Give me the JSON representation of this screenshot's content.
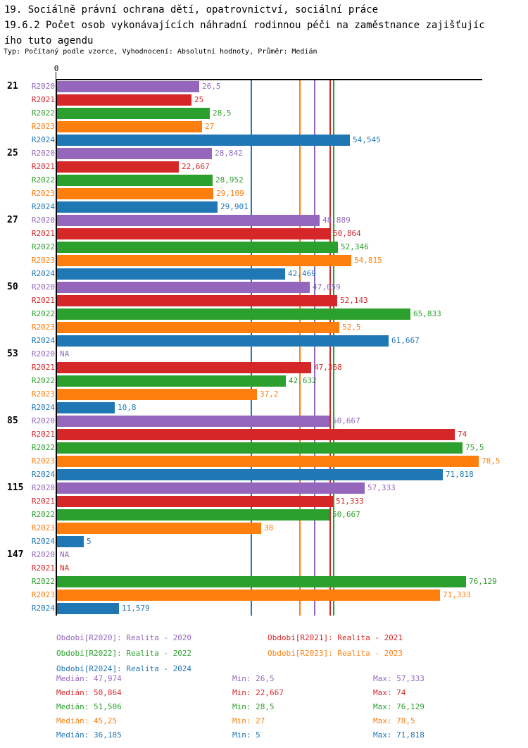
{
  "header": {
    "title_line1": "19. Sociálně právní ochrana dětí, opatrovnictví, sociální práce",
    "title_line2": "19.6.2 Počet osob vykonávajících náhradní rodinnou péči na zaměstnance zajišťujíc",
    "title_line3": "ího tuto agendu",
    "meta_line": "Typ: Počítaný podle vzorce, Vyhodnocení: Absolutní hodnoty, Průměr: Medián"
  },
  "colors": {
    "R2020": "#9467bd",
    "R2021": "#d62728",
    "R2022": "#2ca02c",
    "R2023": "#ff7f0e",
    "R2024": "#1f77b4",
    "axis": "#000000"
  },
  "chart_data": {
    "type": "bar",
    "orientation": "horizontal",
    "x_axis": {
      "zero_label": "0",
      "xlim": [
        0,
        79.3
      ],
      "grid": false
    },
    "series_order": [
      "R2020",
      "R2021",
      "R2022",
      "R2023",
      "R2024"
    ],
    "groups": [
      {
        "category": "21",
        "bars": [
          {
            "series": "R2020",
            "value": 26.5,
            "label": "26,5"
          },
          {
            "series": "R2021",
            "value": 25,
            "label": "25"
          },
          {
            "series": "R2022",
            "value": 28.5,
            "label": "28,5"
          },
          {
            "series": "R2023",
            "value": 27,
            "label": "27"
          },
          {
            "series": "R2024",
            "value": 54.545,
            "label": "54,545"
          }
        ]
      },
      {
        "category": "25",
        "bars": [
          {
            "series": "R2020",
            "value": 28.842,
            "label": "28,842"
          },
          {
            "series": "R2021",
            "value": 22.667,
            "label": "22,667"
          },
          {
            "series": "R2022",
            "value": 28.952,
            "label": "28,952"
          },
          {
            "series": "R2023",
            "value": 29.109,
            "label": "29,109"
          },
          {
            "series": "R2024",
            "value": 29.901,
            "label": "29,901"
          }
        ]
      },
      {
        "category": "27",
        "bars": [
          {
            "series": "R2020",
            "value": 48.889,
            "label": "48,889"
          },
          {
            "series": "R2021",
            "value": 50.864,
            "label": "50,864"
          },
          {
            "series": "R2022",
            "value": 52.346,
            "label": "52,346"
          },
          {
            "series": "R2023",
            "value": 54.815,
            "label": "54,815"
          },
          {
            "series": "R2024",
            "value": 42.469,
            "label": "42,469"
          }
        ]
      },
      {
        "category": "50",
        "bars": [
          {
            "series": "R2020",
            "value": 47.059,
            "label": "47,059"
          },
          {
            "series": "R2021",
            "value": 52.143,
            "label": "52,143"
          },
          {
            "series": "R2022",
            "value": 65.833,
            "label": "65,833"
          },
          {
            "series": "R2023",
            "value": 52.5,
            "label": "52,5"
          },
          {
            "series": "R2024",
            "value": 61.667,
            "label": "61,667"
          }
        ]
      },
      {
        "category": "53",
        "bars": [
          {
            "series": "R2020",
            "value": null,
            "label": "NA"
          },
          {
            "series": "R2021",
            "value": 47.368,
            "label": "47,368"
          },
          {
            "series": "R2022",
            "value": 42.632,
            "label": "42,632"
          },
          {
            "series": "R2023",
            "value": 37.2,
            "label": "37,2"
          },
          {
            "series": "R2024",
            "value": 10.8,
            "label": "10,8"
          }
        ]
      },
      {
        "category": "85",
        "bars": [
          {
            "series": "R2020",
            "value": 50.667,
            "label": "50,667"
          },
          {
            "series": "R2021",
            "value": 74,
            "label": "74"
          },
          {
            "series": "R2022",
            "value": 75.5,
            "label": "75,5"
          },
          {
            "series": "R2023",
            "value": 78.5,
            "label": "78,5"
          },
          {
            "series": "R2024",
            "value": 71.818,
            "label": "71,818"
          }
        ]
      },
      {
        "category": "115",
        "bars": [
          {
            "series": "R2020",
            "value": 57.333,
            "label": "57,333"
          },
          {
            "series": "R2021",
            "value": 51.333,
            "label": "51,333"
          },
          {
            "series": "R2022",
            "value": 50.667,
            "label": "50,667"
          },
          {
            "series": "R2023",
            "value": 38,
            "label": "38"
          },
          {
            "series": "R2024",
            "value": 5,
            "label": "5"
          }
        ]
      },
      {
        "category": "147",
        "bars": [
          {
            "series": "R2020",
            "value": null,
            "label": "NA"
          },
          {
            "series": "R2021",
            "value": null,
            "label": "NA"
          },
          {
            "series": "R2022",
            "value": 76.129,
            "label": "76,129"
          },
          {
            "series": "R2023",
            "value": 71.333,
            "label": "71,333"
          },
          {
            "series": "R2024",
            "value": 11.579,
            "label": "11,579"
          }
        ]
      }
    ],
    "median_lines": [
      {
        "series": "R2020",
        "value": 47.974
      },
      {
        "series": "R2021",
        "value": 50.864
      },
      {
        "series": "R2022",
        "value": 51.506
      },
      {
        "series": "R2023",
        "value": 45.25
      },
      {
        "series": "R2024",
        "value": 36.185
      }
    ]
  },
  "legend": [
    {
      "series": "R2020",
      "text": "Období[R2020]: Realita - 2020"
    },
    {
      "series": "R2021",
      "text": "Období[R2021]: Realita - 2021"
    },
    {
      "series": "R2022",
      "text": "Období[R2022]: Realita - 2022"
    },
    {
      "series": "R2023",
      "text": "Období[R2023]: Realita - 2023"
    },
    {
      "series": "R2024",
      "text": "Období[R2024]: Realita - 2024"
    }
  ],
  "stats": [
    {
      "series": "R2020",
      "median": "Medián: 47,974",
      "min": "Min: 26,5",
      "max": "Max: 57,333"
    },
    {
      "series": "R2021",
      "median": "Medián: 50,864",
      "min": "Min: 22,667",
      "max": "Max: 74"
    },
    {
      "series": "R2022",
      "median": "Medián: 51,506",
      "min": "Min: 28,5",
      "max": "Max: 76,129"
    },
    {
      "series": "R2023",
      "median": "Medián: 45,25",
      "min": "Min: 27",
      "max": "Max: 78,5"
    },
    {
      "series": "R2024",
      "median": "Medián: 36,185",
      "min": "Min: 5",
      "max": "Max: 71,818"
    }
  ]
}
